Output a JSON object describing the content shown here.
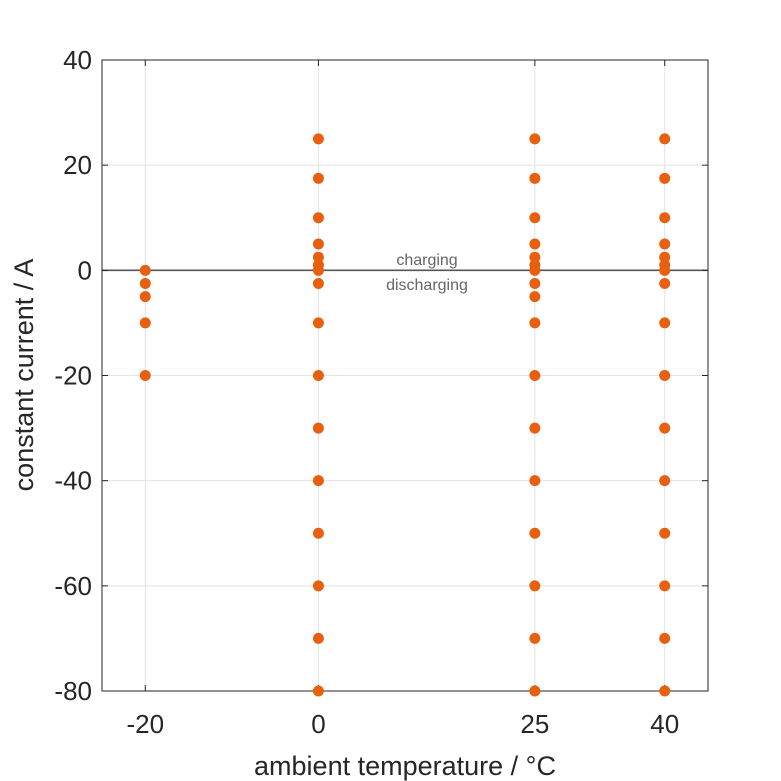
{
  "chart_data": {
    "type": "scatter",
    "title": "",
    "xlabel": "ambient temperature / °C",
    "ylabel": "constant current / A",
    "xlim": [
      -25,
      45
    ],
    "ylim": [
      -80,
      40
    ],
    "xticks": [
      -20,
      0,
      25,
      40
    ],
    "xtick_labels": [
      "-20",
      "0",
      "25",
      "40"
    ],
    "yticks": [
      40,
      20,
      0,
      -20,
      -40,
      -60,
      -80
    ],
    "ytick_labels": [
      "40",
      "20",
      "0",
      "-20",
      "-40",
      "-60",
      "-80"
    ],
    "grid": true,
    "reference_line_y": 0,
    "annotations": [
      "charging",
      "discharging"
    ],
    "color": "#E8600F",
    "series": [
      {
        "x": -20,
        "values": [
          0,
          -2.5,
          -5,
          -10,
          -20
        ]
      },
      {
        "x": 0,
        "values": [
          25,
          17.5,
          10,
          5,
          2.5,
          1,
          0,
          -2.5,
          -10,
          -20,
          -30,
          -40,
          -50,
          -60,
          -70,
          -80
        ]
      },
      {
        "x": 25,
        "values": [
          25,
          17.5,
          10,
          5,
          2.5,
          1,
          0,
          -2.5,
          -5,
          -10,
          -20,
          -30,
          -40,
          -50,
          -60,
          -70,
          -80
        ]
      },
      {
        "x": 40,
        "values": [
          25,
          17.5,
          10,
          5,
          2.5,
          1,
          0,
          -2.5,
          -10,
          -20,
          -30,
          -40,
          -50,
          -60,
          -70,
          -80
        ]
      }
    ]
  }
}
